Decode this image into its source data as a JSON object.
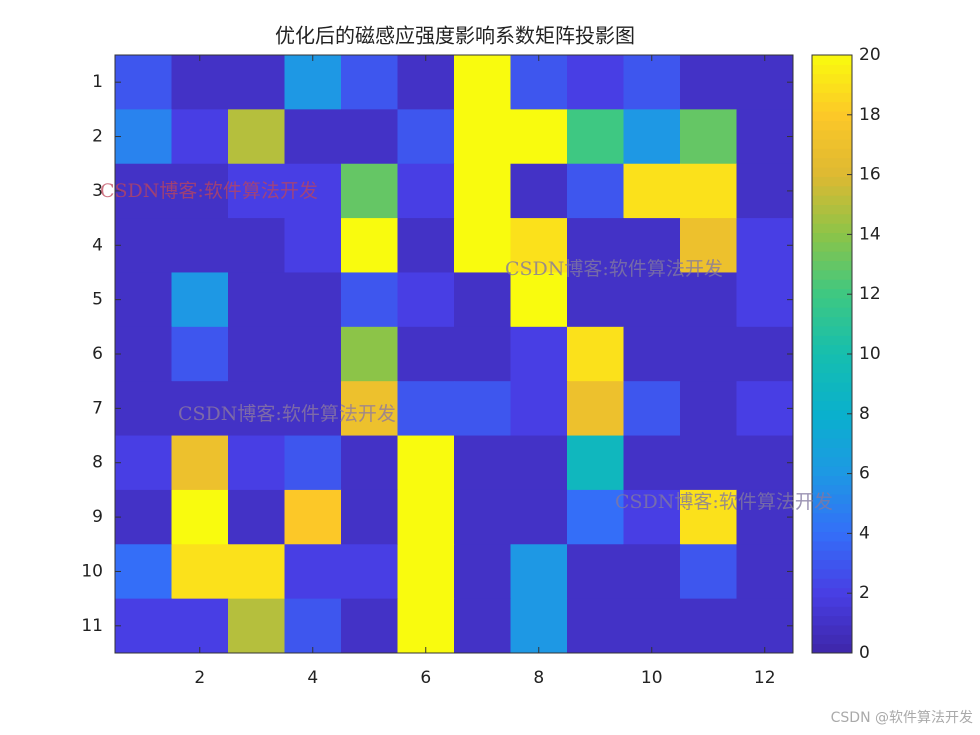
{
  "chart_data": {
    "type": "heatmap",
    "title": "优化后的磁感应强度影响系数矩阵投影图",
    "colormap": "parula",
    "z": [
      [
        3,
        1,
        1,
        6,
        3,
        1,
        20,
        3,
        2,
        3,
        1,
        1
      ],
      [
        5,
        2,
        15,
        1,
        1,
        3,
        20,
        20,
        12,
        6,
        13,
        1
      ],
      [
        1,
        1,
        2,
        2,
        13,
        2,
        20,
        1,
        3,
        19,
        19,
        1
      ],
      [
        1,
        1,
        1,
        2,
        20,
        1,
        20,
        19,
        1,
        1,
        17,
        2
      ],
      [
        1,
        6,
        1,
        1,
        3,
        2,
        1,
        20,
        1,
        1,
        1,
        2
      ],
      [
        1,
        3,
        1,
        1,
        14,
        1,
        1,
        2,
        19,
        1,
        1,
        1
      ],
      [
        1,
        1,
        1,
        1,
        17,
        3,
        3,
        2,
        17,
        3,
        1,
        2
      ],
      [
        2,
        17,
        2,
        3,
        1,
        20,
        1,
        1,
        9,
        1,
        1,
        1
      ],
      [
        1,
        20,
        1,
        18,
        1,
        20,
        1,
        1,
        4,
        2,
        19,
        1
      ],
      [
        4,
        19,
        19,
        2,
        2,
        20,
        1,
        6,
        1,
        1,
        3,
        1
      ],
      [
        2,
        2,
        15,
        3,
        1,
        20,
        1,
        6,
        1,
        1,
        1,
        1
      ]
    ],
    "xlim": [
      0.5,
      12.5
    ],
    "xticks": [
      2,
      4,
      6,
      8,
      10,
      12
    ],
    "ylim": [
      0.5,
      11.5
    ],
    "yticks": [
      1,
      2,
      3,
      4,
      5,
      6,
      7,
      8,
      9,
      10,
      11
    ],
    "clim": [
      0,
      20
    ],
    "cticks": [
      0,
      2,
      4,
      6,
      8,
      10,
      12,
      14,
      16,
      18,
      20
    ],
    "annotations": [
      "CSDN博客:软件算法开发",
      "CSDN博客:软件算法开发",
      "CSDN博客:软件算法开发",
      "CSDN博客:软件算法开发"
    ],
    "credit": "CSDN @软件算法开发"
  }
}
